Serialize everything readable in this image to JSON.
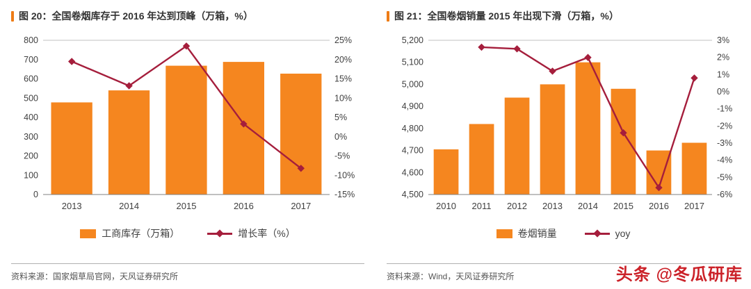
{
  "watermark": "头条 @冬瓜研库",
  "colors": {
    "bar": "#f5861f",
    "line": "#a51e3c",
    "accent": "#ee7c16",
    "watermark": "#cb2128",
    "axis_text": "#404040",
    "source_text": "#555555"
  },
  "panels": [
    {
      "source": "资料来源：国家烟草局官网，天风证券研究所"
    },
    {
      "source": "资料来源：Wind，天风证券研究所"
    }
  ],
  "chart_data": [
    {
      "type": "bar",
      "title": "图 20：全国卷烟库存于 2016 年达到顶峰（万箱，%）",
      "categories": [
        "2013",
        "2014",
        "2015",
        "2016",
        "2017"
      ],
      "series": [
        {
          "name": "工商库存（万箱）",
          "type": "bar",
          "axis": "left",
          "values": [
            478,
            540,
            668,
            688,
            627
          ]
        },
        {
          "name": "增长率（%）",
          "type": "line",
          "axis": "right",
          "values": [
            19.5,
            13.2,
            23.5,
            3.3,
            -8.2
          ]
        }
      ],
      "y_left": {
        "min": 0,
        "max": 800,
        "step": 100,
        "thousands": false
      },
      "y_right": {
        "min": -15,
        "max": 25,
        "step": 5,
        "suffix": "%"
      },
      "grid": false,
      "legend_position": "bottom"
    },
    {
      "type": "bar",
      "title": "图 21：全国卷烟销量 2015 年出现下滑（万箱，%）",
      "categories": [
        "2010",
        "2011",
        "2012",
        "2013",
        "2014",
        "2015",
        "2016",
        "2017"
      ],
      "series": [
        {
          "name": "卷烟销量",
          "type": "bar",
          "axis": "left",
          "values": [
            4705,
            4820,
            4940,
            5000,
            5100,
            4980,
            4700,
            4735
          ]
        },
        {
          "name": "yoy",
          "type": "line",
          "axis": "right",
          "values": [
            null,
            2.6,
            2.5,
            1.2,
            2.0,
            -2.4,
            -5.6,
            0.8
          ]
        }
      ],
      "y_left": {
        "min": 4500,
        "max": 5200,
        "step": 100,
        "thousands": true
      },
      "y_right": {
        "min": -6,
        "max": 3,
        "step": 1,
        "suffix": "%"
      },
      "grid": false,
      "legend_position": "bottom"
    }
  ]
}
